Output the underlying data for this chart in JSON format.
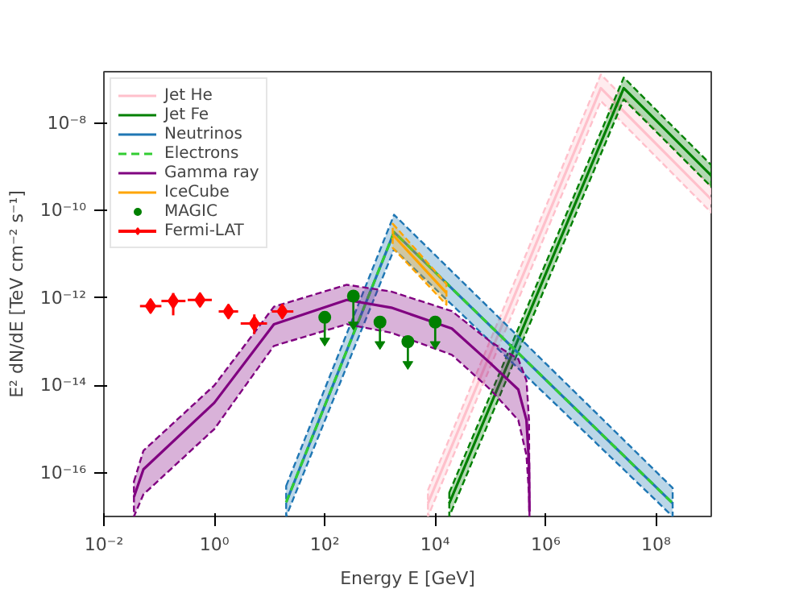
{
  "chart_data": {
    "type": "line",
    "xlabel": "Energy E [GeV]",
    "ylabel": "E² dN/dE [TeV cm⁻² s⁻¹]",
    "log": "xy",
    "grid": false,
    "legend": "top left",
    "xlim": [
      0.01,
      1000000000
    ],
    "ylim": [
      1e-17,
      1.5e-07
    ],
    "xticks": [
      {
        "value": 0.01,
        "label": "10⁻²"
      },
      {
        "value": 1,
        "label": "10⁰"
      },
      {
        "value": 100,
        "label": "10²"
      },
      {
        "value": 10000,
        "label": "10⁴"
      },
      {
        "value": 1000000,
        "label": "10⁶"
      },
      {
        "value": 100000000,
        "label": "10⁸"
      }
    ],
    "yticks": [
      {
        "value": 1e-16,
        "label": "10⁻¹⁶"
      },
      {
        "value": 1e-14,
        "label": "10⁻¹⁴"
      },
      {
        "value": 1e-12,
        "label": "10⁻¹²"
      },
      {
        "value": 1e-10,
        "label": "10⁻¹⁰"
      },
      {
        "value": 1e-08,
        "label": "10⁻⁸"
      }
    ],
    "series": [
      {
        "name": "Jet He",
        "color": "#ffc0cb",
        "line_style": "solid",
        "x": [
          7400,
          10000000,
          1000000000
        ],
        "values": [
          2e-17,
          6.3e-08,
          1.8e-10
        ],
        "upper": [
          4e-17,
          1.3e-07,
          3.5e-10
        ],
        "lower": [
          1e-17,
          3.2e-08,
          9e-11
        ]
      },
      {
        "name": "Jet Fe",
        "color": "#008000",
        "line_style": "solid",
        "x": [
          18000,
          26000000,
          1000000000
        ],
        "values": [
          2e-17,
          6.3e-08,
          6.3e-10
        ],
        "upper": [
          3.5e-17,
          1.1e-07,
          1.1e-09
        ],
        "lower": [
          1e-17,
          3.5e-08,
          3.5e-10
        ]
      },
      {
        "name": "Neutrinos",
        "color": "#1f77b4",
        "line_style": "solid",
        "x": [
          20,
          1800,
          200000000
        ],
        "values": [
          2.1e-17,
          3.2e-11,
          2e-17
        ],
        "upper": [
          5e-17,
          8e-11,
          4.5e-17
        ],
        "lower": [
          1e-17,
          1.3e-11,
          1e-17
        ]
      },
      {
        "name": "Electrons",
        "color": "#32cd32",
        "line_style": "dashed",
        "x": [
          20,
          1800,
          200000000
        ],
        "values": [
          2.1e-17,
          3.2e-11,
          2e-17
        ]
      },
      {
        "name": "Gamma ray",
        "color": "#800080",
        "line_style": "solid",
        "x": [
          0.035,
          0.052,
          1,
          12,
          250,
          1600,
          20000,
          100000,
          320000,
          450000,
          500000,
          510000
        ],
        "values": [
          2.8e-17,
          1.2e-16,
          4e-15,
          2.5e-13,
          9e-13,
          6e-13,
          2e-13,
          3.2e-14,
          8e-15,
          1.6e-15,
          1.6e-16,
          1.3e-17
        ],
        "upper": [
          6.3e-17,
          3.2e-16,
          1e-14,
          6.3e-13,
          2e-12,
          1.4e-12,
          5e-13,
          1e-13,
          4e-14,
          1.3e-14,
          1.6e-15,
          1.3e-17
        ],
        "lower": [
          1e-17,
          3.2e-17,
          1e-15,
          8e-14,
          2.5e-13,
          1.6e-13,
          5e-14,
          8e-15,
          1.6e-15,
          2.5e-16,
          3.2e-17,
          1e-17
        ]
      },
      {
        "name": "IceCube",
        "color": "#ffa500",
        "line_style": "solid",
        "x": [
          1700,
          16000
        ],
        "values": [
          2.8e-11,
          1.3e-12
        ],
        "upper": [
          5e-11,
          2.1e-12
        ],
        "lower": [
          1.4e-11,
          7e-13
        ]
      },
      {
        "name": "MAGIC",
        "type": "scatter",
        "color": "#008000",
        "marker": "circle",
        "x": [
          100,
          330,
          1000,
          3200,
          10000
        ],
        "values": [
          3.6e-13,
          1.1e-12,
          2.8e-13,
          1e-13,
          2.8e-13
        ],
        "errors": [
          [
            1.2e-13,
            3.6e-13
          ],
          [
            2.8e-13,
            1.1e-12
          ],
          [
            1e-13,
            2.8e-13
          ],
          [
            3.5e-14,
            1e-13
          ],
          [
            1e-13,
            2.8e-13
          ]
        ]
      },
      {
        "name": "Fermi-LAT",
        "type": "scatter",
        "color": "#ff0000",
        "marker": "diamond",
        "x": [
          0.07,
          0.18,
          0.55,
          1.8,
          5.3,
          17
        ],
        "values": [
          6.5e-13,
          8.5e-13,
          9e-13,
          4.9e-13,
          2.6e-13,
          4.9e-13
        ],
        "errors": [
          [
            5e-13,
            8.5e-13
          ],
          [
            4e-13,
            1.3e-12
          ],
          [
            7.5e-13,
            1.1e-12
          ],
          [
            3.5e-13,
            6.8e-13
          ],
          [
            1.5e-13,
            4.2e-13
          ],
          [
            3.7e-13,
            6.5e-13
          ]
        ],
        "xerrors": [
          [
            0.045,
            0.11
          ],
          [
            0.11,
            0.3
          ],
          [
            0.33,
            0.9
          ],
          [
            1.2,
            2.7
          ],
          [
            3,
            9
          ],
          [
            11,
            27
          ]
        ]
      }
    ]
  }
}
